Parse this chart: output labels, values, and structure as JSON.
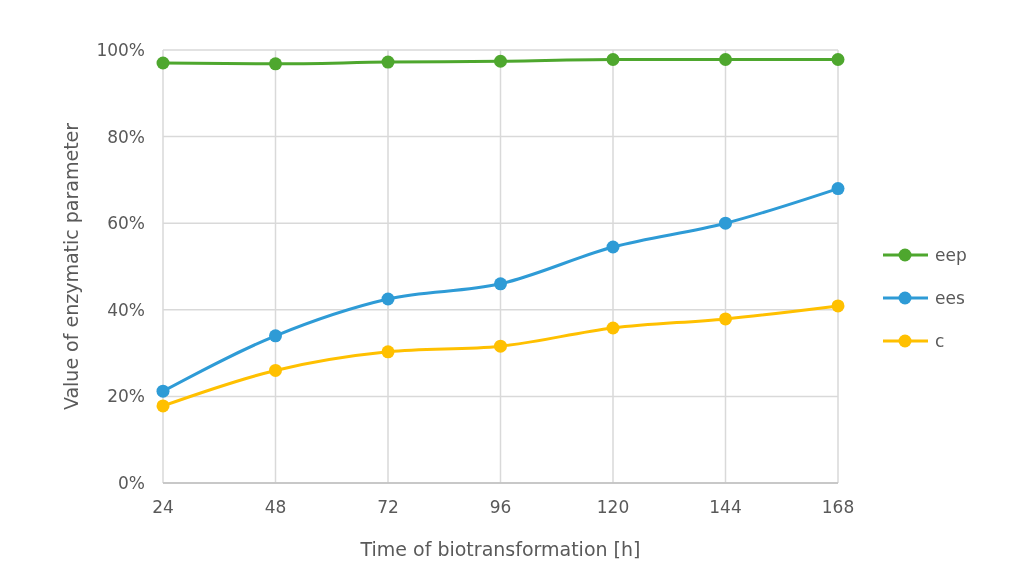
{
  "chart_data": {
    "type": "line",
    "xlabel": "Time of biotransformation [h]",
    "ylabel": "Value of enzymatic parameter",
    "x": [
      24,
      48,
      72,
      96,
      120,
      144,
      168
    ],
    "xlim": [
      24,
      168
    ],
    "xticks": [
      24,
      48,
      72,
      96,
      120,
      144,
      168
    ],
    "ylim": [
      0,
      100
    ],
    "yticks": [
      {
        "value": 0,
        "label": "0%"
      },
      {
        "value": 20,
        "label": "20%"
      },
      {
        "value": 40,
        "label": "40%"
      },
      {
        "value": 60,
        "label": "60%"
      },
      {
        "value": 80,
        "label": "80%"
      },
      {
        "value": 100,
        "label": "100%"
      }
    ],
    "grid": true,
    "legend": "right",
    "marker": "circle",
    "line_style": "solid",
    "series": [
      {
        "name": "eep",
        "color": "#4ea72e",
        "values": [
          97,
          96.8,
          97.2,
          97.4,
          97.8,
          97.8,
          97.8
        ]
      },
      {
        "name": "ees",
        "color": "#2e9bd6",
        "values": [
          21.2,
          34,
          42.5,
          46,
          54.5,
          60,
          68
        ]
      },
      {
        "name": "c",
        "color": "#ffc000",
        "values": [
          17.8,
          26,
          30.3,
          31.6,
          35.8,
          37.9,
          40.9
        ]
      }
    ]
  }
}
